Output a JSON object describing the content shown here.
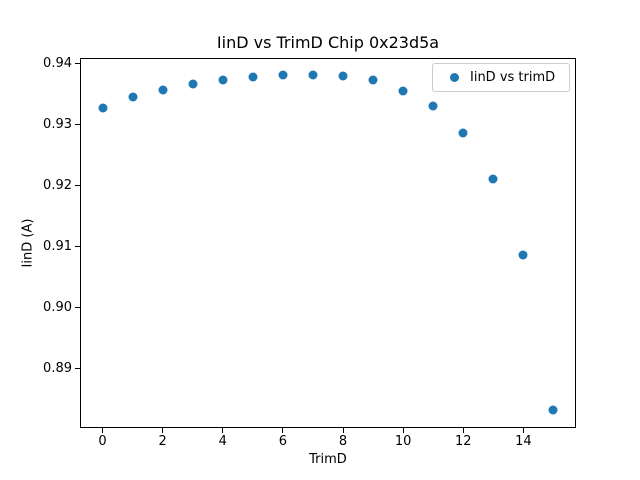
{
  "chart_data": {
    "type": "scatter",
    "title": "IinD vs TrimD Chip 0x23d5a",
    "xlabel": "TrimD",
    "ylabel": "IinD (A)",
    "x": [
      0,
      1,
      2,
      3,
      4,
      5,
      6,
      7,
      8,
      9,
      10,
      11,
      12,
      13,
      14,
      15
    ],
    "series": [
      {
        "name": "IinD vs trimD",
        "color": "#1f77b4",
        "values": [
          0.9327,
          0.9344,
          0.9356,
          0.9366,
          0.9372,
          0.9378,
          0.938,
          0.9381,
          0.9379,
          0.9372,
          0.9354,
          0.933,
          0.9286,
          0.9211,
          0.9086,
          0.8832
        ]
      }
    ],
    "xlim": [
      -0.75,
      15.75
    ],
    "ylim": [
      0.8804,
      0.9409
    ],
    "xticks": {
      "values": [
        0,
        2,
        4,
        6,
        8,
        10,
        12,
        14
      ],
      "labels": [
        "0",
        "2",
        "4",
        "6",
        "8",
        "10",
        "12",
        "14"
      ]
    },
    "yticks": {
      "values": [
        0.89,
        0.9,
        0.91,
        0.92,
        0.93,
        0.94
      ],
      "labels": [
        "0.89",
        "0.90",
        "0.91",
        "0.92",
        "0.93",
        "0.94"
      ]
    },
    "grid": false,
    "legend": {
      "position": "upper right",
      "entries": [
        "IinD vs trimD"
      ]
    },
    "spine_color": "#000000",
    "background_color": "#ffffff"
  }
}
